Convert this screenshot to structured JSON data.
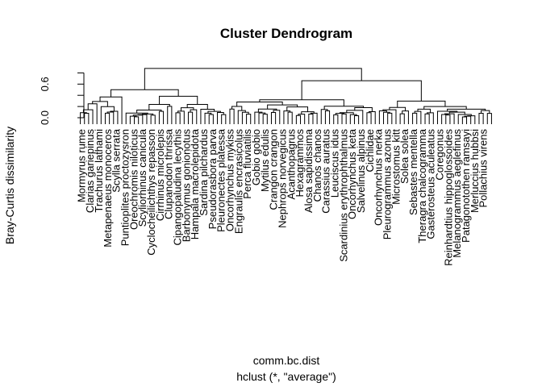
{
  "chart_data": {
    "type": "dendrogram",
    "title": "Cluster Dendrogram",
    "ylabel": "Bray-Curtis dissimilarity",
    "xlabel_line1": "comm.bc.dist",
    "xlabel_line2": "hclust (*, \"average\")",
    "ylim": [
      0,
      0.95
    ],
    "yticks": [
      0.0,
      0.6
    ],
    "ytick_minor": [
      0.2,
      0.4,
      0.8
    ],
    "ytick_labels": [
      "0.0",
      "0.6"
    ],
    "top_merge_height": 0.88,
    "left_cluster_height": 0.56,
    "right_cluster_height": 0.66,
    "leaf_labels": [
      "Mormyrus rume",
      "Clarias gariepinus",
      "Trachurus lathami",
      "Metapenaeus monoceros",
      "Scylla serrata",
      "Puntioplites proctozysron",
      "Oreochromis niloticus",
      "Scyliorhinus canicula",
      "Cyclocheilichthys repasson",
      "Cirrhinus microlepis",
      "Clupanodon thrissa",
      "Cipangopaludina lecythis",
      "Barbonymus gonionotus",
      "Hampala macrolepidota",
      "Sardina pilchardus",
      "Pseudorasbora parva",
      "Pleuronectes platessa",
      "Oncorhynchus mykiss",
      "Engraulis encrasicolus",
      "Perca fluviatilis",
      "Gobio gobio",
      "Mytilus edulis",
      "Crangon crangon",
      "Nephrops norvegicus",
      "Acanthopagrus",
      "Hexagrammos",
      "Alosa sapidissima",
      "Chanos chanos",
      "Carassius auratus",
      "Leuciscus idus",
      "Scardinius erythrophthalmus",
      "Oncorhynchus keta",
      "Salvelinus alpinus",
      "Cichlidae",
      "Oncorhynchus nerka",
      "Pleurogrammus azonus",
      "Microstomus kitt",
      "Solea solea",
      "Sebastes mentella",
      "Theragra chalcogramma",
      "Gasterosteus aculeatus",
      "Coregonus",
      "Reinhardtius hippoglossoides",
      "Melanogrammus aeglefinus",
      "Patagonotothen ramsayi",
      "Merluccius hubbsi",
      "Pollachius virens"
    ]
  }
}
